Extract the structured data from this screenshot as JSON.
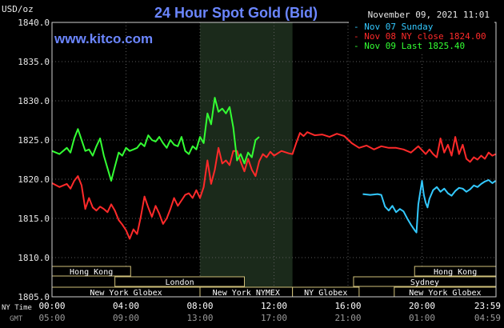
{
  "chart_data": {
    "type": "line",
    "title": "24 Hour Spot Gold (Bid)",
    "watermark": "www.kitco.com",
    "ylabel": "USD/oz",
    "timestamp": "November 09, 2021 11:01",
    "ylim": [
      1805,
      1840
    ],
    "yticks": [
      "1840.0",
      "1835.0",
      "1830.0",
      "1825.0",
      "1820.0",
      "1815.0",
      "1810.0",
      "1805.0"
    ],
    "ytick_values": [
      1840,
      1835,
      1830,
      1825,
      1820,
      1815,
      1810,
      1805
    ],
    "xlim": [
      0,
      24
    ],
    "x_unit": "hours (NY time)",
    "xticks_ny": [
      "00:00",
      "04:00",
      "08:00",
      "12:00",
      "16:00",
      "20:00",
      "23:59"
    ],
    "xticks_gmt": [
      "05:00",
      "09:00",
      "13:00",
      "17:00",
      "21:00",
      "01:00",
      "04:59"
    ],
    "xtick_values": [
      0,
      4,
      8,
      12,
      16,
      20,
      23.98
    ],
    "xaxis_row_labels": {
      "ny": "NY Time",
      "gmt": "GMT"
    },
    "highlight_range": [
      8,
      13
    ],
    "legend": {
      "placement": "top-right",
      "entries": [
        {
          "text": "Nov 07 Sunday",
          "color": "#33c9ff"
        },
        {
          "text": "Nov 08 NY close 1824.00",
          "color": "#ff2a2a"
        },
        {
          "text": "Nov 09 Last 1825.40",
          "color": "#33ff33"
        }
      ]
    },
    "sessions": [
      {
        "label": "Hong Kong",
        "segments": [
          [
            0,
            4.25
          ],
          [
            19.6,
            24
          ]
        ]
      },
      {
        "label": "London",
        "segments": [
          [
            3.4,
            10.4
          ]
        ]
      },
      {
        "label": "New York Globex",
        "segments": [
          [
            0,
            8
          ]
        ]
      },
      {
        "label": "New York NYMEX",
        "segments": [
          [
            8,
            13
          ]
        ]
      },
      {
        "label": "NY Globex",
        "segments": [
          [
            13,
            16.6
          ]
        ]
      },
      {
        "label": "Sydney",
        "segments": [
          [
            16.3,
            24
          ]
        ]
      },
      {
        "label": "New York Globex",
        "segments": [
          [
            18.5,
            24
          ]
        ]
      }
    ],
    "series": [
      {
        "name": "Nov 07 Sunday",
        "color": "#33c9ff",
        "x": [
          16.8,
          17.2,
          17.6,
          17.8,
          18.0,
          18.2,
          18.4,
          18.6,
          18.8,
          19.0,
          19.2,
          19.4,
          19.6,
          19.7,
          19.8,
          20.0,
          20.1,
          20.2,
          20.3,
          20.4,
          20.6,
          20.8,
          21.0,
          21.2,
          21.4,
          21.6,
          21.8,
          22.0,
          22.2,
          22.4,
          22.6,
          22.8,
          23.0,
          23.2,
          23.4,
          23.6,
          23.8,
          23.98
        ],
        "y": [
          1818.1,
          1818.0,
          1818.1,
          1818.0,
          1816.5,
          1816.0,
          1816.6,
          1815.8,
          1816.2,
          1815.9,
          1815.0,
          1814.2,
          1813.5,
          1813.2,
          1816.8,
          1819.8,
          1818.0,
          1817.0,
          1816.4,
          1817.5,
          1818.6,
          1819.0,
          1818.4,
          1818.8,
          1818.2,
          1817.9,
          1818.5,
          1818.9,
          1818.8,
          1818.4,
          1818.7,
          1819.2,
          1819.0,
          1819.4,
          1819.7,
          1819.9,
          1819.5,
          1819.8
        ]
      },
      {
        "name": "Nov 08 NY close 1824.00",
        "color": "#ff2a2a",
        "x": [
          0,
          0.4,
          0.8,
          1.0,
          1.2,
          1.4,
          1.6,
          1.8,
          2.0,
          2.2,
          2.4,
          2.6,
          2.8,
          3.0,
          3.2,
          3.4,
          3.6,
          3.8,
          4.0,
          4.2,
          4.4,
          4.6,
          4.8,
          5.0,
          5.2,
          5.4,
          5.6,
          5.8,
          6.0,
          6.2,
          6.4,
          6.6,
          6.8,
          7.0,
          7.2,
          7.4,
          7.6,
          7.8,
          8.0,
          8.2,
          8.4,
          8.6,
          8.8,
          9.0,
          9.2,
          9.4,
          9.6,
          9.8,
          10.0,
          10.2,
          10.4,
          10.6,
          10.8,
          11.0,
          11.2,
          11.4,
          11.6,
          11.8,
          12.0,
          12.4,
          12.8,
          13.0,
          13.2,
          13.4,
          13.6,
          13.8,
          14.2,
          14.6,
          15.0,
          15.4,
          15.8,
          16.2,
          16.6,
          17.0,
          17.4,
          17.8,
          18.2,
          18.6,
          19.0,
          19.4,
          19.8,
          20.2,
          20.4,
          20.6,
          20.8,
          21.0,
          21.2,
          21.4,
          21.6,
          21.8,
          22.0,
          22.2,
          22.4,
          22.6,
          22.8,
          23.0,
          23.2,
          23.4,
          23.6,
          23.8,
          23.98
        ],
        "y": [
          1819.5,
          1819.0,
          1819.4,
          1818.8,
          1819.8,
          1820.4,
          1819.2,
          1816.2,
          1817.6,
          1816.4,
          1816.0,
          1816.5,
          1816.2,
          1815.8,
          1816.8,
          1816.0,
          1814.8,
          1814.2,
          1813.5,
          1812.4,
          1813.6,
          1813.0,
          1815.2,
          1817.8,
          1816.4,
          1815.2,
          1816.6,
          1815.6,
          1814.3,
          1815.0,
          1816.2,
          1817.6,
          1816.6,
          1817.3,
          1818.0,
          1818.2,
          1817.6,
          1818.6,
          1817.6,
          1819.0,
          1822.4,
          1819.4,
          1821.2,
          1824.0,
          1822.0,
          1822.4,
          1821.8,
          1823.6,
          1823.6,
          1822.2,
          1821.0,
          1822.6,
          1821.2,
          1820.4,
          1822.3,
          1823.2,
          1822.8,
          1823.5,
          1823.0,
          1823.6,
          1823.3,
          1823.2,
          1824.6,
          1825.9,
          1825.5,
          1826.0,
          1825.6,
          1825.7,
          1825.4,
          1825.8,
          1825.5,
          1824.6,
          1824.0,
          1824.3,
          1823.8,
          1824.2,
          1824.0,
          1824.0,
          1823.8,
          1823.4,
          1824.2,
          1823.2,
          1823.8,
          1823.2,
          1822.8,
          1825.2,
          1823.4,
          1824.4,
          1823.0,
          1825.4,
          1823.2,
          1824.4,
          1822.6,
          1822.2,
          1822.8,
          1822.5,
          1823.0,
          1822.6,
          1823.4,
          1823.0,
          1823.2
        ]
      },
      {
        "name": "Nov 09 Last 1825.40",
        "color": "#33ff33",
        "x": [
          0,
          0.4,
          0.8,
          1.0,
          1.2,
          1.4,
          1.6,
          1.8,
          2.0,
          2.2,
          2.4,
          2.6,
          2.8,
          3.0,
          3.2,
          3.4,
          3.6,
          3.8,
          4.0,
          4.2,
          4.4,
          4.6,
          4.8,
          5.0,
          5.2,
          5.4,
          5.6,
          5.8,
          6.0,
          6.2,
          6.4,
          6.6,
          6.8,
          7.0,
          7.2,
          7.4,
          7.6,
          7.8,
          8.0,
          8.2,
          8.4,
          8.6,
          8.8,
          9.0,
          9.2,
          9.4,
          9.6,
          9.8,
          10.0,
          10.2,
          10.4,
          10.6,
          10.8,
          11.0,
          11.2
        ],
        "y": [
          1823.6,
          1823.2,
          1824.0,
          1823.4,
          1825.2,
          1826.4,
          1825.0,
          1823.6,
          1823.8,
          1823.0,
          1824.2,
          1825.2,
          1823.0,
          1821.4,
          1819.8,
          1821.6,
          1823.4,
          1823.0,
          1824.0,
          1823.6,
          1823.8,
          1824.0,
          1824.6,
          1824.2,
          1825.6,
          1825.0,
          1824.8,
          1825.4,
          1824.6,
          1824.0,
          1825.0,
          1824.4,
          1824.2,
          1825.4,
          1823.6,
          1823.2,
          1824.2,
          1823.8,
          1825.4,
          1824.6,
          1828.4,
          1827.0,
          1830.4,
          1828.6,
          1829.0,
          1828.4,
          1829.2,
          1826.6,
          1822.4,
          1823.2,
          1822.0,
          1823.4,
          1822.8,
          1825.0,
          1825.4
        ]
      }
    ]
  }
}
